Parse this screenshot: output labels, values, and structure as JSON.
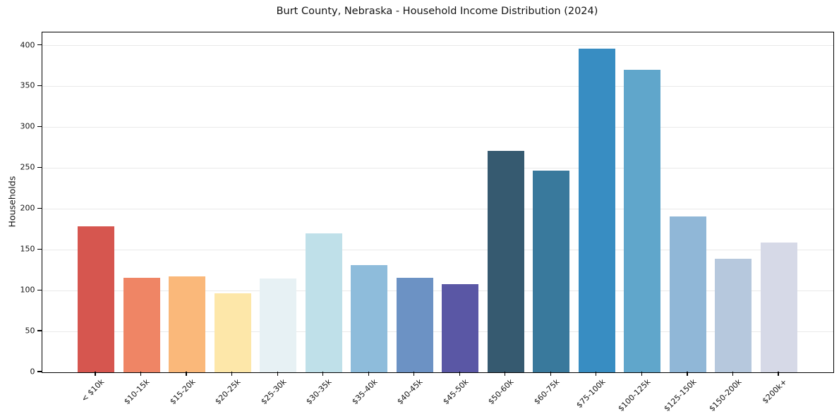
{
  "chart_data": {
    "type": "bar",
    "title": "Burt County, Nebraska - Household Income Distribution (2024)",
    "xlabel": "",
    "ylabel": "Households",
    "categories": [
      "< $10k",
      "$10-15k",
      "$15-20k",
      "$20-25k",
      "$25-30k",
      "$30-35k",
      "$35-40k",
      "$40-45k",
      "$45-50k",
      "$50-60k",
      "$60-75k",
      "$75-100k",
      "$100-125k",
      "$125-150k",
      "$150-200k",
      "$200k+"
    ],
    "values": [
      179,
      116,
      117,
      97,
      115,
      170,
      131,
      116,
      108,
      271,
      247,
      396,
      370,
      191,
      139,
      159
    ],
    "bar_colors": [
      "#d6564f",
      "#ef8565",
      "#fab87a",
      "#fde7a9",
      "#e7f1f4",
      "#bfe0e9",
      "#8ebcdb",
      "#6c92c4",
      "#5a57a5",
      "#365a70",
      "#39799c",
      "#388dc2",
      "#60a6cb",
      "#90b7d7",
      "#b6c8dd",
      "#d6d9e7"
    ],
    "ylim": [
      0,
      416
    ],
    "yticks": [
      0,
      50,
      100,
      150,
      200,
      250,
      300,
      350,
      400
    ],
    "grid": "horizontal",
    "gridline_color": "#e9e9e9",
    "spine_color": "#000000",
    "background_color": "#ffffff",
    "legend": "none"
  }
}
